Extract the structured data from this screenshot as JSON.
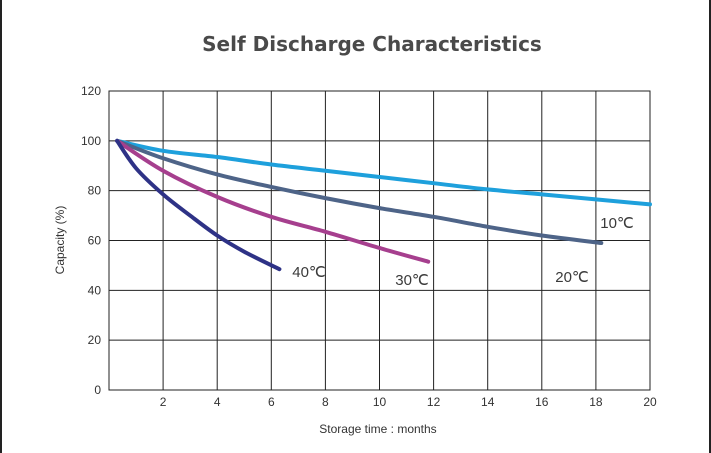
{
  "chart_data": {
    "type": "line",
    "title": "Self Discharge Characteristics",
    "xlabel": "Storage time : months",
    "ylabel": "Capacity (%)",
    "xlim": [
      0,
      20
    ],
    "ylim": [
      0,
      120
    ],
    "xticks": [
      2,
      4,
      6,
      8,
      10,
      12,
      14,
      16,
      18,
      20
    ],
    "yticks": [
      0,
      20,
      40,
      60,
      80,
      100,
      120
    ],
    "grid": true,
    "legend": "none",
    "series": [
      {
        "name": "10℃",
        "color": "#1ea0dc",
        "x": [
          0.3,
          2,
          4,
          6,
          8,
          10,
          12,
          14,
          16,
          18,
          20
        ],
        "y": [
          100,
          96,
          93.5,
          90.5,
          88,
          85.5,
          83,
          80.5,
          78.5,
          76.5,
          74.5
        ]
      },
      {
        "name": "20℃",
        "color": "#4e6488",
        "x": [
          0.3,
          2,
          4,
          6,
          8,
          10,
          12,
          14,
          16,
          18.2
        ],
        "y": [
          100,
          93,
          86.5,
          81.5,
          77,
          73,
          69.5,
          65.5,
          62,
          59
        ]
      },
      {
        "name": "30℃",
        "color": "#a63f8e",
        "x": [
          0.3,
          2,
          4,
          6,
          8,
          10,
          11.8
        ],
        "y": [
          100,
          88,
          77.5,
          69.5,
          63.5,
          57,
          51.5
        ]
      },
      {
        "name": "40℃",
        "color": "#2e3286",
        "x": [
          0.3,
          1,
          2,
          3,
          4,
          5,
          6.3
        ],
        "y": [
          100,
          89,
          78.5,
          70,
          62,
          55.5,
          48.5
        ]
      }
    ]
  }
}
